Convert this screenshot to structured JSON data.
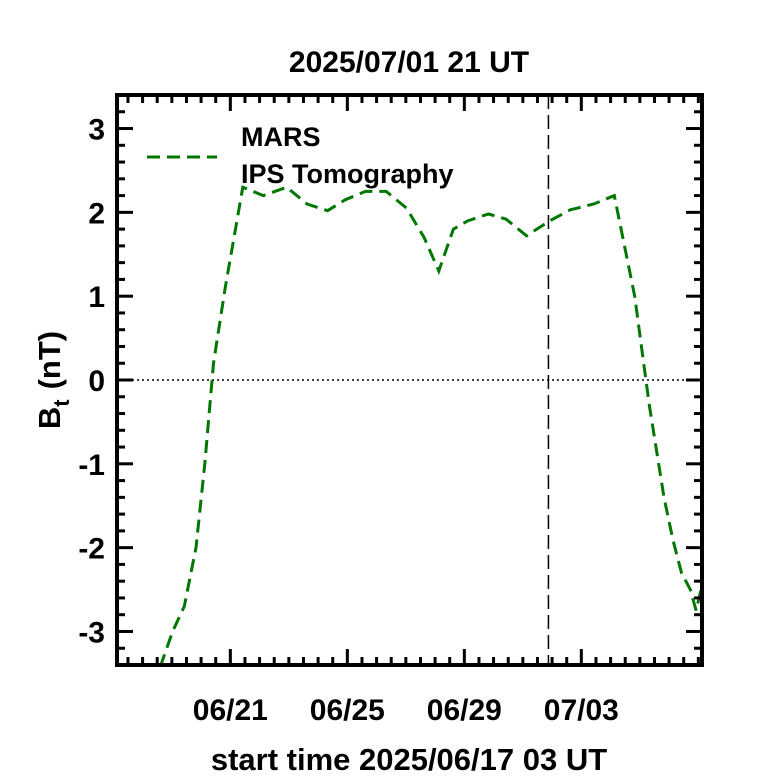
{
  "chart_data": {
    "type": "line",
    "title": "2025/07/01 21 UT",
    "xlabel": "start time 2025/06/17 03 UT",
    "ylabel_main": "B",
    "ylabel_sub": "t",
    "ylabel_unit": "(nT)",
    "x_unit": "days since start time",
    "xlim": [
      0,
      20
    ],
    "ylim": [
      -3.4,
      3.4
    ],
    "y_ticks": [
      3,
      2,
      1,
      0,
      -1,
      -2,
      -3
    ],
    "y_tick_labels": [
      "3",
      "2",
      "1",
      "0",
      "-1",
      "-2",
      "-3"
    ],
    "x_ticks": [
      3.875,
      7.875,
      11.875,
      15.875
    ],
    "x_tick_labels": [
      "06/21",
      "06/25",
      "06/29",
      "07/03"
    ],
    "current_time_marker_x": 14.75,
    "zero_line": true,
    "legend": {
      "entries": [
        "MARS",
        "IPS Tomography"
      ],
      "placement": "top-left"
    },
    "series": [
      {
        "name": "MARS IPS Tomography",
        "color": "#007700",
        "style": "dashed",
        "x": [
          0.0,
          0.4,
          1.0,
          1.5,
          1.9,
          2.3,
          2.7,
          3.0,
          3.3,
          3.7,
          4.3,
          5.0,
          5.8,
          6.5,
          7.2,
          7.8,
          8.5,
          9.2,
          9.9,
          10.5,
          11.0,
          11.5,
          12.0,
          12.7,
          13.3,
          14.0,
          14.8,
          15.5,
          16.3,
          17.0,
          17.7,
          18.2,
          18.7,
          19.0,
          19.3,
          19.6,
          19.8,
          20.0
        ],
        "y": [
          -3.4,
          -3.52,
          -3.65,
          -3.4,
          -3.0,
          -2.7,
          -2.0,
          -1.0,
          0.2,
          1.1,
          2.3,
          2.2,
          2.3,
          2.1,
          2.02,
          2.15,
          2.25,
          2.25,
          2.05,
          1.7,
          1.3,
          1.8,
          1.9,
          1.98,
          1.92,
          1.72,
          1.9,
          2.03,
          2.1,
          2.2,
          1.0,
          -0.3,
          -1.4,
          -1.9,
          -2.3,
          -2.5,
          -2.75,
          -2.45
        ]
      }
    ]
  }
}
